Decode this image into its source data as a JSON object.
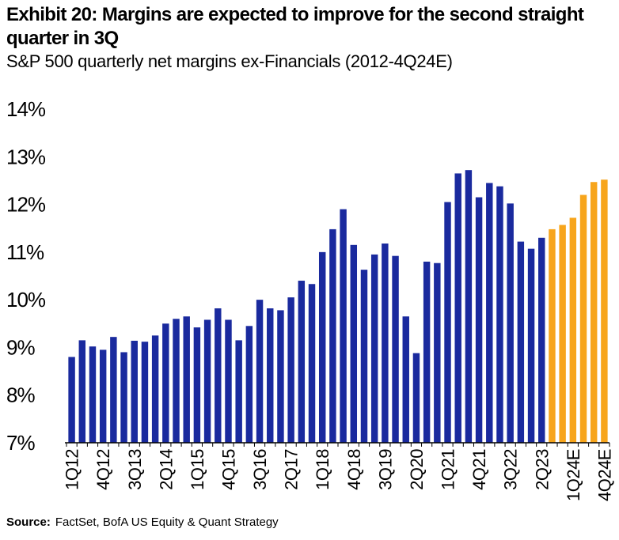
{
  "header": {
    "title": "Exhibit 20: Margins are expected to improve for the second straight quarter in 3Q",
    "subtitle": "S&P 500 quarterly net margins ex-Financials (2012-4Q24E)"
  },
  "footer": {
    "source_label": "Source:",
    "source_text": "FactSet, BofA US Equity & Quant Strategy"
  },
  "colors": {
    "actual": "#1a2a9e",
    "estimate": "#f7a51c",
    "axis": "#000000"
  },
  "chart_data": {
    "type": "bar",
    "title": "Exhibit 20: Margins are expected to improve for the second straight quarter in 3Q",
    "subtitle": "S&P 500 quarterly net margins ex-Financials (2012-4Q24E)",
    "xlabel": "",
    "ylabel": "",
    "ylim": [
      7,
      14
    ],
    "yticks": [
      7,
      8,
      9,
      10,
      11,
      12,
      13,
      14
    ],
    "ytick_labels": [
      "7%",
      "8%",
      "9%",
      "10%",
      "11%",
      "12%",
      "13%",
      "14%"
    ],
    "grid": false,
    "categories": [
      "1Q12",
      "2Q12",
      "3Q12",
      "4Q12",
      "1Q13",
      "2Q13",
      "3Q13",
      "4Q13",
      "1Q14",
      "2Q14",
      "3Q14",
      "4Q14",
      "1Q15",
      "2Q15",
      "3Q15",
      "4Q15",
      "1Q16",
      "2Q16",
      "3Q16",
      "4Q16",
      "1Q17",
      "2Q17",
      "3Q17",
      "4Q17",
      "1Q18",
      "2Q18",
      "3Q18",
      "4Q18",
      "1Q19",
      "2Q19",
      "3Q19",
      "4Q19",
      "1Q20",
      "2Q20",
      "3Q20",
      "4Q20",
      "1Q21",
      "2Q21",
      "3Q21",
      "4Q21",
      "1Q22",
      "2Q22",
      "3Q22",
      "4Q22",
      "1Q23",
      "2Q23",
      "3Q23",
      "4Q23",
      "1Q24E",
      "2Q24E",
      "3Q24E",
      "4Q24E"
    ],
    "values": [
      8.8,
      9.15,
      9.02,
      8.95,
      9.22,
      8.9,
      9.14,
      9.12,
      9.25,
      9.5,
      9.6,
      9.65,
      9.42,
      9.58,
      9.82,
      9.58,
      9.15,
      9.45,
      10.0,
      9.82,
      9.78,
      10.05,
      10.4,
      10.33,
      11.0,
      11.48,
      11.9,
      11.15,
      10.63,
      10.95,
      11.18,
      10.92,
      9.65,
      8.88,
      10.8,
      10.77,
      12.05,
      12.65,
      12.72,
      12.15,
      12.45,
      12.38,
      12.02,
      11.22,
      11.07,
      11.3,
      11.48,
      11.57,
      11.72,
      12.2,
      12.47,
      12.52
    ],
    "estimate_from_index": 46,
    "tick_labels": [
      "1Q12",
      "4Q12",
      "3Q13",
      "2Q14",
      "1Q15",
      "4Q15",
      "3Q16",
      "2Q17",
      "1Q18",
      "4Q18",
      "3Q19",
      "2Q20",
      "1Q21",
      "4Q21",
      "3Q22",
      "2Q23",
      "1Q24E",
      "4Q24E"
    ],
    "tick_label_indices": [
      0,
      3,
      6,
      9,
      12,
      15,
      18,
      21,
      24,
      27,
      30,
      33,
      36,
      39,
      42,
      45,
      48,
      51
    ]
  }
}
